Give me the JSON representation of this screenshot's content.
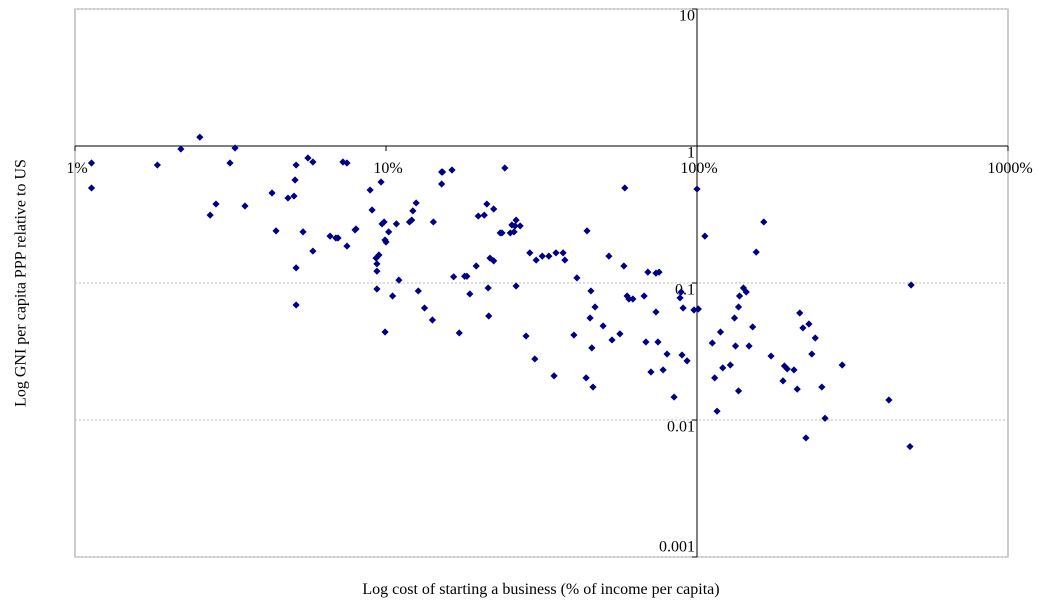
{
  "chart_data": {
    "type": "scatter",
    "x_label": "Log cost of starting a business (% of income per capita)",
    "y_label": "Log GNI per capita PPP relative to US",
    "xscale": "log",
    "yscale": "log",
    "xlim": [
      1,
      1000
    ],
    "ylim": [
      0.001,
      10
    ],
    "xticks": [
      {
        "value": 1,
        "label": "1%"
      },
      {
        "value": 10,
        "label": "10%"
      },
      {
        "value": 100,
        "label": "100%"
      },
      {
        "value": 1000,
        "label": "1000%"
      }
    ],
    "yticks": [
      10,
      1,
      0.1,
      0.01,
      0.001
    ],
    "xaxis_at": 1,
    "yaxis_at": 100,
    "grid": "y",
    "color": "#000080",
    "x": [
      1.13,
      1.13,
      1.84,
      2.19,
      2.52,
      3.15,
      3.27,
      2.72,
      2.84,
      3.52,
      4.3,
      4.43,
      4.84,
      5.06,
      5.1,
      5.14,
      5.14,
      5.14,
      5.41,
      5.61,
      5.82,
      5.82,
      6.61,
      6.9,
      7.01,
      7.27,
      7.49,
      7.49,
      7.95,
      8.01,
      8.89,
      9.02,
      9.29,
      9.35,
      9.35,
      9.35,
      9.49,
      9.64,
      9.71,
      9.86,
      9.93,
      10.0,
      9.93,
      10.2,
      10.5,
      10.8,
      11.0,
      12.1,
      12.2,
      12.5,
      11.9,
      12.7,
      13.3,
      14.1,
      14.2,
      15.1,
      15.1,
      15.2,
      16.3,
      16.5,
      17.2,
      17.9,
      18.2,
      18.6,
      19.5,
      19.8,
      20.7,
      21.1,
      21.3,
      21.4,
      21.6,
      22.2,
      22.2,
      23.3,
      23.6,
      24.1,
      25.1,
      25.4,
      25.8,
      26.0,
      26.2,
      26.2,
      27.0,
      28.2,
      29.0,
      30.1,
      30.4,
      31.8,
      33.4,
      34.7,
      35.2,
      37.1,
      37.6,
      40.2,
      41.1,
      44.0,
      44.3,
      45.3,
      45.6,
      45.9,
      46.3,
      47.0,
      49.9,
      52.1,
      53.3,
      56.5,
      58.2,
      58.6,
      59.6,
      60.4,
      62.2,
      67.6,
      68.5,
      69.5,
      71.1,
      73.8,
      73.8,
      74.9,
      75.5,
      77.8,
      80.1,
      84.4,
      88.2,
      88.9,
      89.5,
      90.2,
      92.9,
      97.8,
      100,
      101,
      106,
      112,
      114,
      116,
      119,
      121,
      128,
      132,
      133,
      136,
      136,
      137,
      141,
      144,
      147,
      151,
      155,
      164,
      173,
      189,
      191,
      195,
      205,
      210,
      214,
      219,
      224,
      229,
      234,
      240,
      252,
      258,
      293,
      414,
      484,
      488
    ],
    "values": [
      0.751,
      0.494,
      0.726,
      0.951,
      1.16,
      0.751,
      0.967,
      0.313,
      0.377,
      0.365,
      0.454,
      0.24,
      0.417,
      0.431,
      0.565,
      0.726,
      0.129,
      0.0691,
      0.236,
      0.817,
      0.764,
      0.171,
      0.22,
      0.213,
      0.213,
      0.764,
      0.186,
      0.751,
      0.244,
      0.248,
      0.477,
      0.341,
      0.152,
      0.122,
      0.138,
      0.0904,
      0.16,
      0.546,
      0.27,
      0.279,
      0.206,
      0.199,
      0.0439,
      0.236,
      0.0804,
      0.27,
      0.105,
      0.288,
      0.336,
      0.384,
      0.279,
      0.0875,
      0.0657,
      0.0537,
      0.279,
      0.646,
      0.528,
      0.646,
      0.668,
      0.111,
      0.0432,
      0.112,
      0.112,
      0.0832,
      0.133,
      0.308,
      0.313,
      0.377,
      0.092,
      0.0574,
      0.152,
      0.145,
      0.347,
      0.232,
      0.232,
      0.691,
      0.232,
      0.265,
      0.236,
      0.261,
      0.288,
      0.0951,
      0.261,
      0.041,
      0.166,
      0.0279,
      0.147,
      0.157,
      0.157,
      0.021,
      0.166,
      0.166,
      0.147,
      0.0417,
      0.109,
      0.0203,
      0.24,
      0.0555,
      0.0875,
      0.0336,
      0.0174,
      0.0668,
      0.0486,
      0.157,
      0.0384,
      0.0425,
      0.133,
      0.494,
      0.0804,
      0.0764,
      0.0764,
      0.0804,
      0.0371,
      0.12,
      0.0224,
      0.118,
      0.0614,
      0.0371,
      0.12,
      0.0232,
      0.0303,
      0.0147,
      0.0778,
      0.086,
      0.0298,
      0.0657,
      0.027,
      0.0635,
      0.485,
      0.0646,
      0.22,
      0.0365,
      0.0203,
      0.0116,
      0.0439,
      0.024,
      0.0252,
      0.0555,
      0.0347,
      0.0163,
      0.0668,
      0.0804,
      0.092,
      0.086,
      0.0347,
      0.0478,
      0.168,
      0.279,
      0.0293,
      0.0193,
      0.0248,
      0.0236,
      0.0232,
      0.0168,
      0.0604,
      0.047,
      0.0074,
      0.0502,
      0.0303,
      0.0397,
      0.0174,
      0.0103,
      0.0252,
      0.014,
      0.0064,
      0.0967
    ]
  }
}
